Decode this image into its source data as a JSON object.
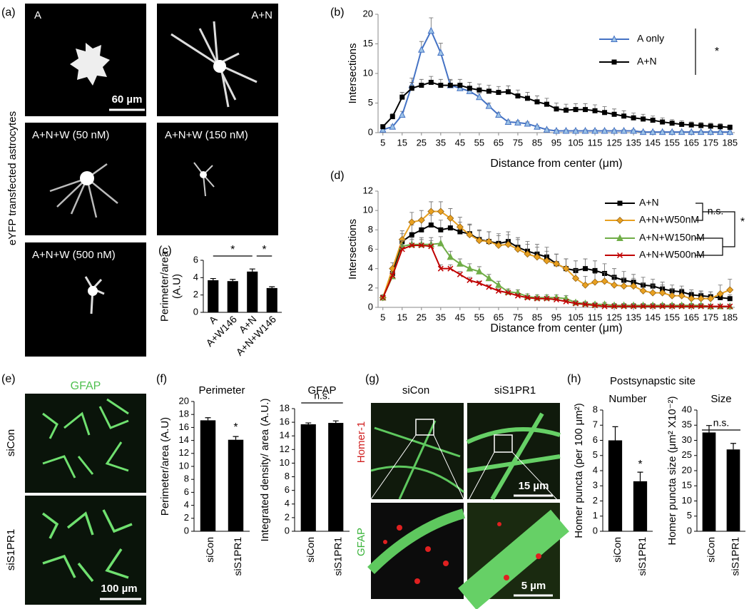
{
  "panel_labels": [
    "(a)",
    "(b)",
    "(c)",
    "(d)",
    "(e)",
    "(f)",
    "(g)",
    "(h)"
  ],
  "figure_a": {
    "side_label": "eYFP transfected astrocytes",
    "images": [
      "A",
      "A+N",
      "A+N+W (50 nM)",
      "A+N+W (150 nM)",
      "A+N+W (500 nM)"
    ],
    "scale_bar": "60 µm"
  },
  "figure_e": {
    "stain": "GFAP",
    "rows": [
      "siCon",
      "siS1PR1"
    ],
    "scale_bar": "100 µm"
  },
  "figure_g": {
    "columns": [
      "siCon",
      "siS1PR1"
    ],
    "stains": [
      "GFAP",
      "Homer-1"
    ],
    "scale_bars": [
      "15 µm",
      "5 µm"
    ]
  },
  "figure_h": {
    "title": "Postsynapstic site"
  },
  "chart_data": [
    {
      "type": "line",
      "ylabel": "Intersections",
      "xlabel": "Distance from center (μm)",
      "x": [
        5,
        10,
        15,
        20,
        25,
        30,
        35,
        40,
        45,
        50,
        55,
        60,
        65,
        70,
        75,
        80,
        85,
        90,
        95,
        100,
        105,
        110,
        115,
        120,
        125,
        130,
        135,
        140,
        145,
        150,
        155,
        160,
        165,
        170,
        175,
        180,
        185
      ],
      "xlim": [
        2.5,
        187.5
      ],
      "xticks": [
        5,
        15,
        25,
        35,
        45,
        55,
        65,
        75,
        85,
        95,
        105,
        115,
        125,
        135,
        145,
        155,
        165,
        175,
        185
      ],
      "ylim": [
        0,
        20
      ],
      "yticks": [
        0,
        5,
        10,
        15,
        20
      ],
      "grid": false,
      "series": [
        {
          "name": "A only",
          "color": "#4472c4",
          "marker": "triangle",
          "values": [
            0.5,
            1,
            3,
            8,
            14,
            17.2,
            13.5,
            8,
            7.5,
            7,
            6,
            4.5,
            3,
            1.8,
            1.7,
            1.5,
            1,
            0.5,
            0.3,
            0.3,
            0.3,
            0.3,
            0.3,
            0.3,
            0.3,
            0.3,
            0.3,
            0.1,
            0.1,
            0.1,
            0.1,
            0.1,
            0.1,
            0.1,
            0.1,
            0.1,
            0.1
          ],
          "errors": [
            0.2,
            0.3,
            0.6,
            1.2,
            1.4,
            2.2,
            1.6,
            0.8,
            0.7,
            0.6,
            0.6,
            0.5,
            0.4,
            0.3,
            0.3,
            0.3,
            0.2,
            0.2,
            0.2,
            0.2,
            0.2,
            0.2,
            0.2,
            0.2,
            0.2,
            0.2,
            0.2,
            0.2,
            0.2,
            0.2,
            0.2,
            0.2,
            0.2,
            0.2,
            0.2,
            0.2,
            0.2
          ]
        },
        {
          "name": "A+N",
          "color": "#000000",
          "marker": "square",
          "values": [
            1,
            2.7,
            6,
            7.5,
            8,
            8.5,
            8,
            8,
            8,
            7.5,
            7.2,
            7,
            6.8,
            6.9,
            6.2,
            5.8,
            5.2,
            4.8,
            4,
            3.8,
            3.9,
            3.9,
            3.7,
            3.4,
            3.1,
            2.8,
            2.5,
            2.3,
            2.1,
            1.8,
            1.6,
            1.4,
            1.3,
            1.2,
            1.1,
            1,
            0.9
          ],
          "errors": [
            0.3,
            0.5,
            0.8,
            1,
            1,
            1,
            1,
            1,
            1,
            1,
            1,
            1,
            1,
            1,
            1,
            1,
            1,
            1,
            1,
            1,
            1,
            1,
            1,
            1,
            0.9,
            0.9,
            0.8,
            0.8,
            0.7,
            0.7,
            0.6,
            0.6,
            0.5,
            0.5,
            0.5,
            0.5,
            0.4
          ]
        }
      ],
      "annotations": [
        "*"
      ]
    },
    {
      "type": "bar",
      "ylabel": [
        "Perimeter/area",
        "(A.U)"
      ],
      "categories": [
        "A",
        "A+W146",
        "A+N",
        "A+N+W146"
      ],
      "values": [
        3.7,
        3.6,
        4.7,
        2.8
      ],
      "errors": [
        0.2,
        0.2,
        0.3,
        0.15
      ],
      "color": "#000000",
      "ylim": [
        0,
        6
      ],
      "yticks": [
        0,
        2,
        4,
        6
      ],
      "annotations": [
        "*",
        "*"
      ]
    },
    {
      "type": "line",
      "ylabel": "Intersections",
      "xlabel": "Distance from center (μm)",
      "x": [
        5,
        10,
        15,
        20,
        25,
        30,
        35,
        40,
        45,
        50,
        55,
        60,
        65,
        70,
        75,
        80,
        85,
        90,
        95,
        100,
        105,
        110,
        115,
        120,
        125,
        130,
        135,
        140,
        145,
        150,
        155,
        160,
        165,
        170,
        175,
        180,
        185
      ],
      "xlim": [
        2.5,
        187.5
      ],
      "xticks": [
        5,
        15,
        25,
        35,
        45,
        55,
        65,
        75,
        85,
        95,
        105,
        115,
        125,
        135,
        145,
        155,
        165,
        175,
        185
      ],
      "ylim": [
        0,
        12
      ],
      "yticks": [
        0,
        2,
        4,
        6,
        8,
        10,
        12
      ],
      "grid": false,
      "series": [
        {
          "name": "A+N",
          "color": "#000000",
          "marker": "square",
          "values": [
            1,
            3.5,
            6.8,
            7.5,
            8,
            8.5,
            8,
            8.2,
            7.8,
            7.6,
            7,
            6.8,
            6.6,
            6.8,
            6.2,
            5.8,
            5.5,
            5.2,
            4.5,
            4,
            3.8,
            4,
            3.8,
            3.5,
            3.1,
            2.8,
            2.6,
            2.3,
            2.2,
            1.9,
            1.7,
            1.6,
            1.3,
            1.2,
            1.1,
            1,
            0.9
          ],
          "errors": [
            0.3,
            0.5,
            0.8,
            1,
            1,
            1,
            1,
            1,
            1,
            1,
            1,
            1,
            1,
            1,
            1,
            1,
            1,
            1,
            1,
            1,
            1,
            1,
            1,
            1,
            0.9,
            0.9,
            0.8,
            0.8,
            0.7,
            0.7,
            0.6,
            0.6,
            0.5,
            0.5,
            0.5,
            0.5,
            0.4
          ]
        },
        {
          "name": "A+N+W50nM",
          "color": "#e8a020",
          "marker": "diamond",
          "values": [
            1,
            4,
            7,
            8.8,
            9,
            9.9,
            9.9,
            9.2,
            8.3,
            7.5,
            6.9,
            6.8,
            6.4,
            6.5,
            6,
            5.5,
            5.2,
            4.8,
            4.5,
            4,
            3,
            2.3,
            2.6,
            2.7,
            2.3,
            2.2,
            2.2,
            1.7,
            1.5,
            1.5,
            1.2,
            1.2,
            0.9,
            0.9,
            0.9,
            1.4,
            1.8
          ],
          "errors": [
            0.3,
            0.6,
            0.9,
            1,
            1,
            1,
            1,
            1,
            1,
            1,
            1,
            1,
            1,
            1,
            1,
            1,
            1,
            1,
            1,
            1,
            0.9,
            0.9,
            0.9,
            0.9,
            0.9,
            0.8,
            0.8,
            0.8,
            0.8,
            0.8,
            0.7,
            0.7,
            0.7,
            0.7,
            0.7,
            0.9,
            1.1
          ]
        },
        {
          "name": "A+N+W150nM",
          "color": "#70ad47",
          "marker": "triangle",
          "values": [
            1,
            3.2,
            6.3,
            6.5,
            6.5,
            6.5,
            6.6,
            5.2,
            4.5,
            4,
            3.7,
            3,
            2.3,
            1.6,
            1.5,
            1.1,
            1,
            1,
            1,
            0.9,
            0.5,
            0.4,
            0.3,
            0.3,
            0.2,
            0.2,
            0.2,
            0.2,
            0.2,
            0.2,
            0.2,
            0.2,
            0.2,
            0.2,
            0.1,
            0.1,
            0.1
          ],
          "errors": [
            0.2,
            0.4,
            0.6,
            0.7,
            0.7,
            0.7,
            0.7,
            0.6,
            0.5,
            0.5,
            0.5,
            0.4,
            0.4,
            0.3,
            0.3,
            0.3,
            0.3,
            0.3,
            0.3,
            0.3,
            0.2,
            0.2,
            0.2,
            0.2,
            0.2,
            0.2,
            0.2,
            0.2,
            0.2,
            0.2,
            0.2,
            0.2,
            0.2,
            0.2,
            0.2,
            0.2,
            0.2
          ]
        },
        {
          "name": "A+N+W500nM",
          "color": "#c00000",
          "marker": "x",
          "values": [
            1,
            3.3,
            6,
            6.4,
            6.4,
            6.3,
            4,
            4,
            3.4,
            2.8,
            2.5,
            2.1,
            1.7,
            1.5,
            1.2,
            1,
            0.9,
            0.9,
            0.8,
            0.6,
            0.4,
            0.3,
            0.2,
            0.1,
            0.1,
            0.1,
            0.1,
            0.1,
            0.1,
            0.1,
            0.1,
            0.1,
            0.1,
            0.1,
            0.1,
            0.1,
            0.1
          ],
          "errors": [
            0.2,
            0.3,
            0.5,
            0.6,
            0.6,
            0.6,
            0.4,
            0.4,
            0.3,
            0.3,
            0.2,
            0.2,
            0.2,
            0.2,
            0.2,
            0.2,
            0.2,
            0.2,
            0.2,
            0.2,
            0.2,
            0.2,
            0.2,
            0.2,
            0.2,
            0.2,
            0.2,
            0.2,
            0.2,
            0.2,
            0.2,
            0.2,
            0.2,
            0.2,
            0.2,
            0.2,
            0.2
          ]
        }
      ],
      "annotations": [
        "n.s.",
        "*"
      ]
    },
    {
      "type": "bar",
      "title": "Perimeter",
      "ylabel": [
        "Perimeter/area (A.U)"
      ],
      "categories": [
        "siCon",
        "siS1PR1"
      ],
      "values": [
        17.1,
        14.1
      ],
      "errors": [
        0.4,
        0.5
      ],
      "color": "#000000",
      "ylim": [
        0,
        20
      ],
      "yticks": [
        0,
        2,
        4,
        6,
        8,
        10,
        12,
        14,
        16,
        18,
        20
      ],
      "annotations": [
        "*"
      ]
    },
    {
      "type": "bar",
      "title": "GFAP",
      "ylabel": [
        "Integrated density/ area (A.U.)"
      ],
      "categories": [
        "siCon",
        "siS1PR1"
      ],
      "values": [
        15.7,
        15.9
      ],
      "errors": [
        0.2,
        0.3
      ],
      "color": "#000000",
      "ylim": [
        0,
        18
      ],
      "yticks": [
        0,
        2,
        4,
        6,
        8,
        10,
        12,
        14,
        16,
        18
      ],
      "annotations": [
        "n.s."
      ]
    },
    {
      "type": "bar",
      "title": "Number",
      "ylabel": [
        "Homer puncta (per 100 μm²)"
      ],
      "categories": [
        "siCon",
        "siS1PR1"
      ],
      "values": [
        6.0,
        3.3
      ],
      "errors": [
        0.9,
        0.6
      ],
      "color": "#000000",
      "ylim": [
        0,
        8
      ],
      "yticks": [
        0,
        1,
        2,
        3,
        4,
        5,
        6,
        7,
        8
      ],
      "annotations": [
        "*"
      ]
    },
    {
      "type": "bar",
      "title": "Size",
      "ylabel": [
        "Homer puncta size (μm² X10⁻²)"
      ],
      "categories": [
        "siCon",
        "siS1PR1"
      ],
      "values": [
        32.6,
        27.0
      ],
      "errors": [
        2.3,
        2.0
      ],
      "color": "#000000",
      "ylim": [
        0,
        40
      ],
      "yticks": [
        0,
        5,
        10,
        15,
        20,
        25,
        30,
        35,
        40
      ],
      "annotations": [
        "n.s."
      ]
    }
  ]
}
